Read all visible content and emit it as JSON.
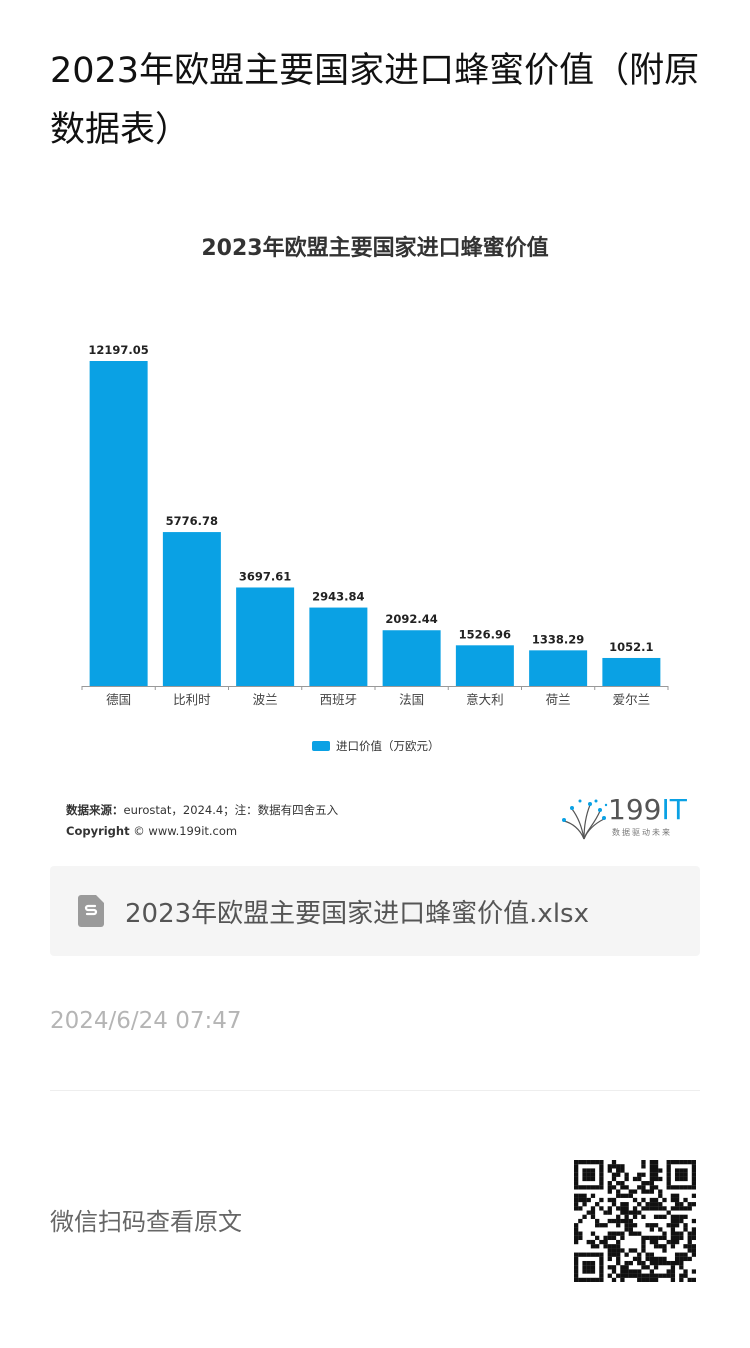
{
  "page": {
    "title": "2023年欧盟主要国家进口蜂蜜价值（附原数据表）"
  },
  "chart": {
    "source_label": "数据来源：",
    "source_text": "eurostat，2024.4；注：数据有四舍五入",
    "copyright_label": "Copyright",
    "copyright_text": "© www.199it.com",
    "logo_number": "199",
    "logo_it": "IT",
    "logo_sub": "数据驱动未来"
  },
  "chart_data": {
    "type": "bar",
    "title": "2023年欧盟主要国家进口蜂蜜价值",
    "categories": [
      "德国",
      "比利时",
      "波兰",
      "西班牙",
      "法国",
      "意大利",
      "荷兰",
      "爱尔兰"
    ],
    "series": [
      {
        "name": "进口价值（万欧元）",
        "values": [
          12197.05,
          5776.78,
          3697.61,
          2943.84,
          2092.44,
          1526.96,
          1338.29,
          1052.1
        ],
        "labels": [
          "12197.05",
          "5776.78",
          "3697.61",
          "2943.84",
          "2092.44",
          "1526.96",
          "1338.29",
          "1052.1"
        ]
      }
    ],
    "ylim": [
      0,
      12197.05
    ],
    "grid": false,
    "legend": "bottom",
    "colors": {
      "bar": "#0aa1e4"
    }
  },
  "attachment": {
    "file_name": "2023年欧盟主要国家进口蜂蜜价值.xlsx",
    "icon": "spreadsheet-file-icon"
  },
  "meta": {
    "date": "2024/6/24 07:47",
    "scan_text": "微信扫码查看原文",
    "qr_icon": "qr-code"
  }
}
